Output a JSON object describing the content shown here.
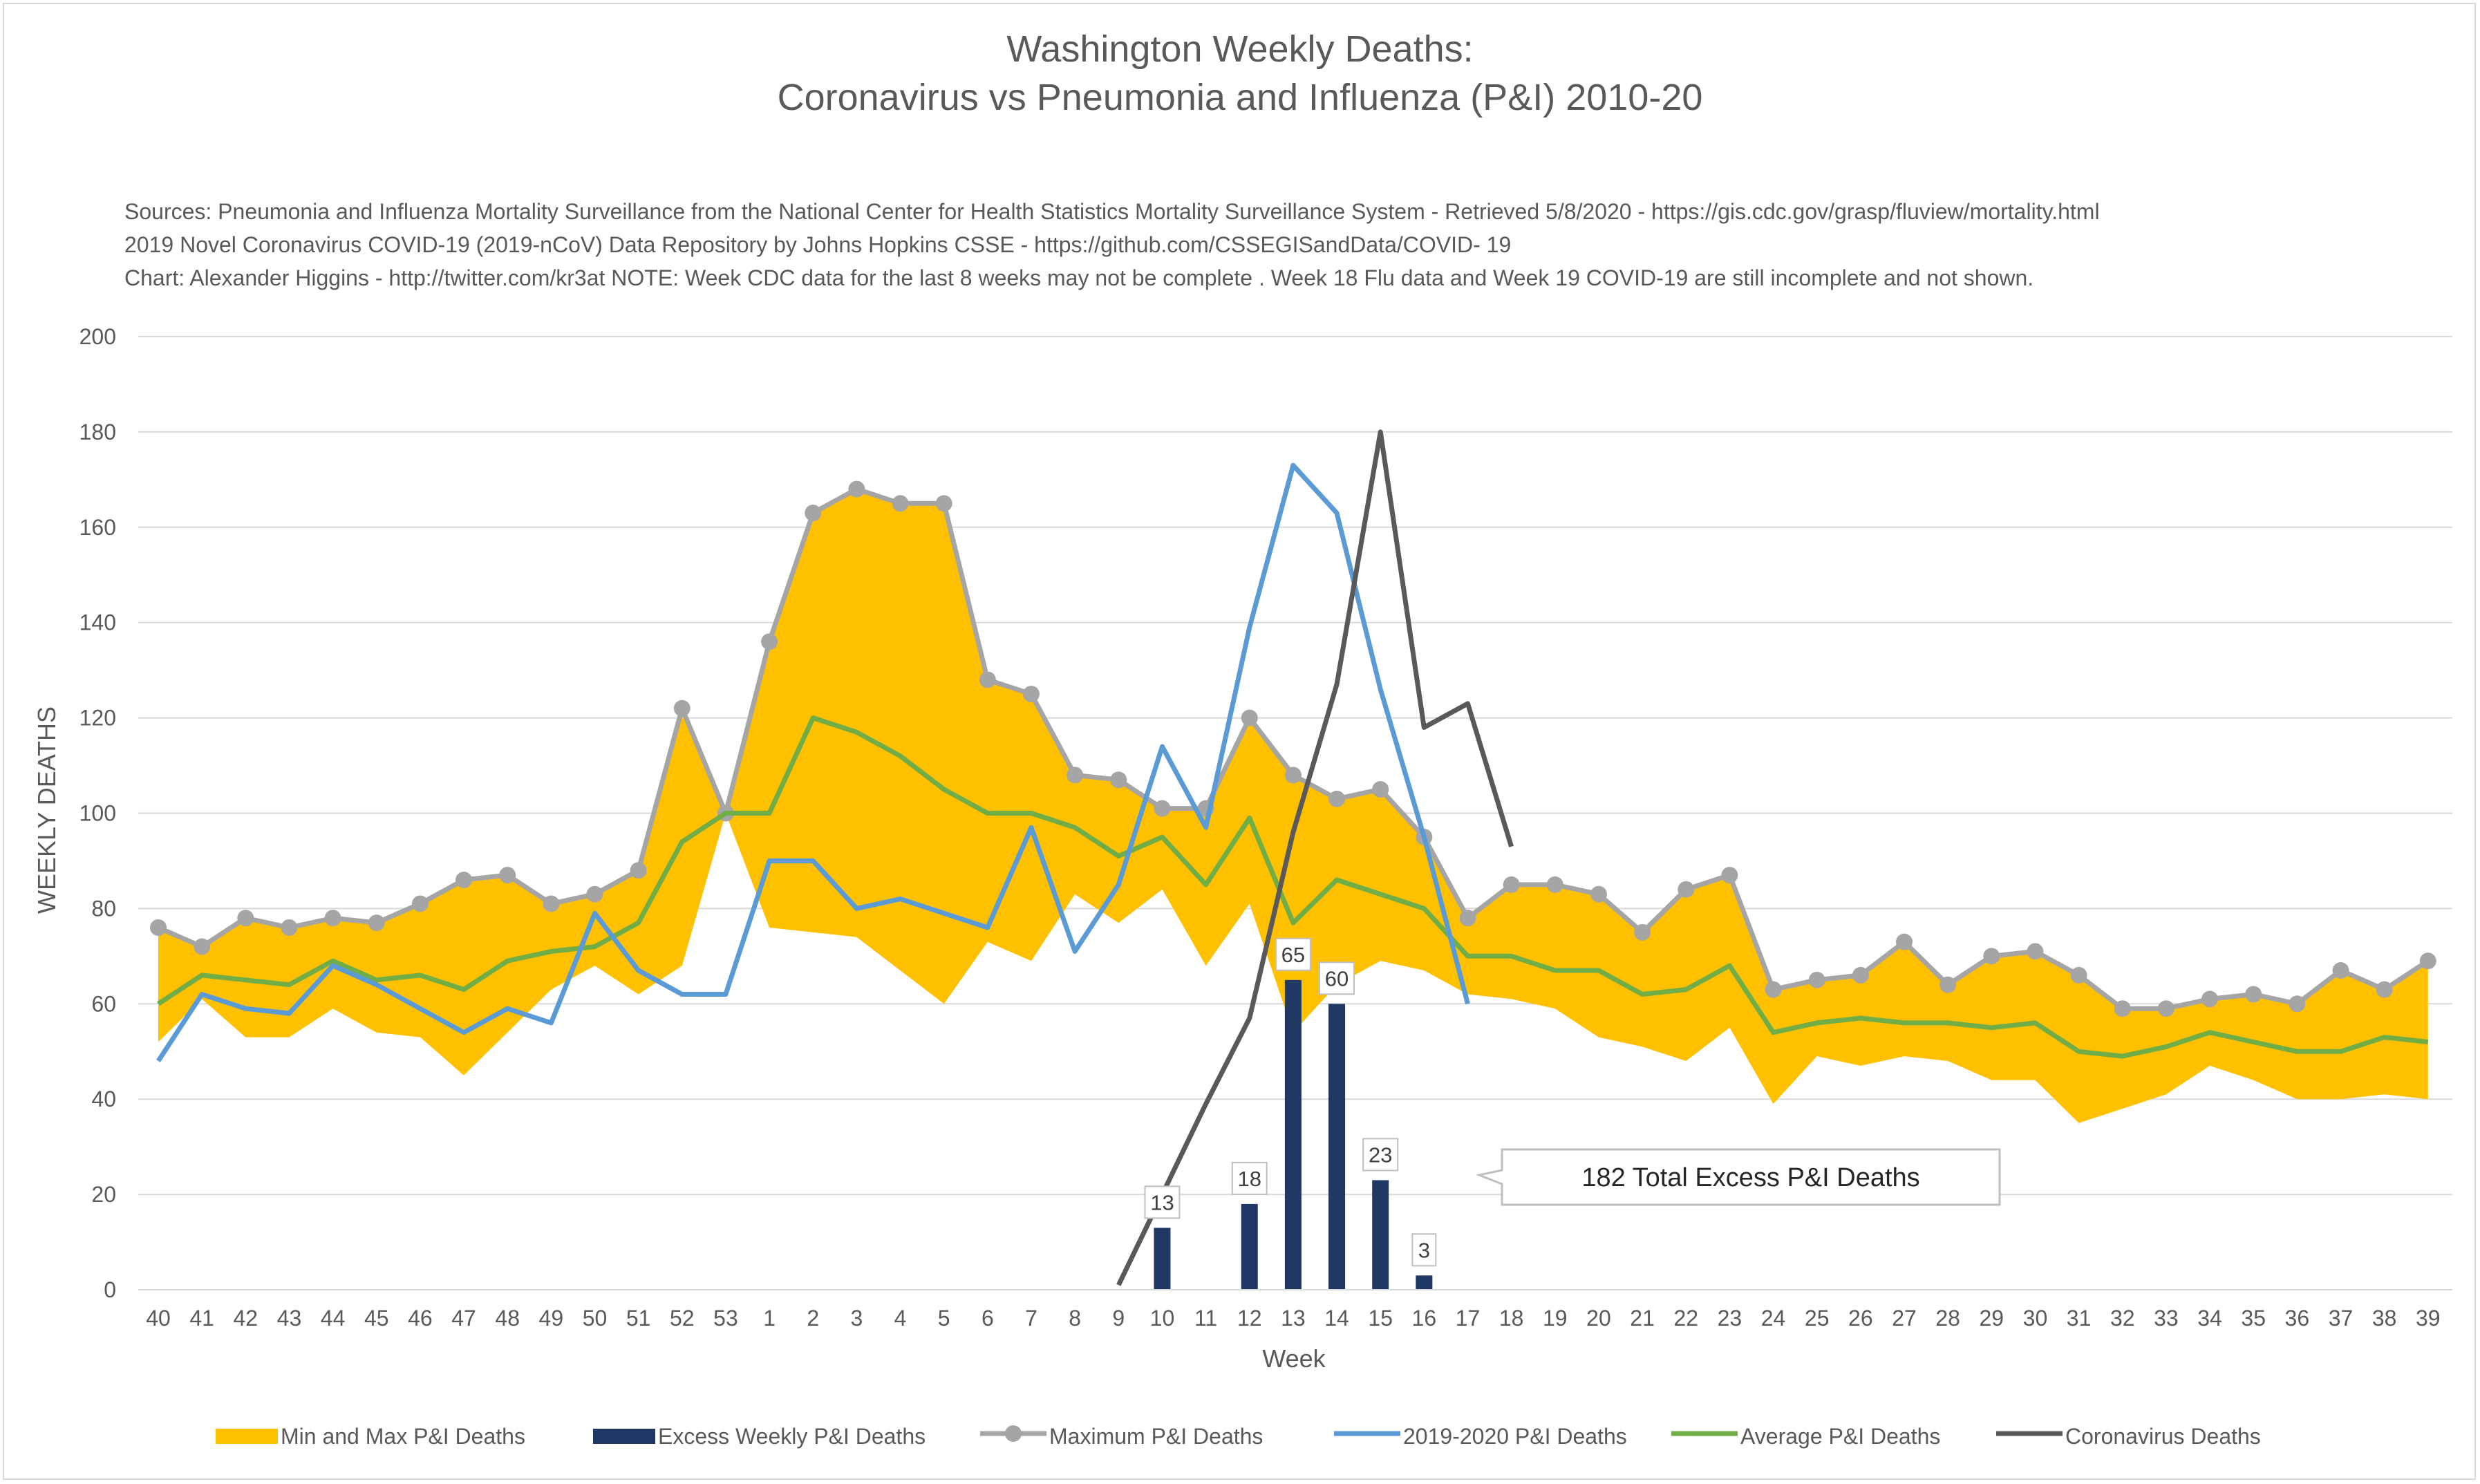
{
  "title_line1": "Washington Weekly Deaths:",
  "title_line2": "Coronavirus vs Pneumonia and Influenza (P&I) 2010-20",
  "sources": [
    "Sources: Pneumonia and Influenza Mortality Surveillance from the National Center for Health Statistics Mortality Surveillance System - Retrieved 5/8/2020 - https://gis.cdc.gov/grasp/fluview/mortality.html",
    "2019 Novel Coronavirus COVID-19 (2019-nCoV) Data Repository by Johns Hopkins CSSE - https://github.com/CSSEGISandData/COVID- 19",
    "Chart: Alexander Higgins - http://twitter.com/kr3at   NOTE: Week CDC data for the last 8 weeks may not be complete . Week 18 Flu data and Week 19 COVID-19 are still incomplete and not shown."
  ],
  "callout_text": "182 Total Excess P&I Deaths",
  "colors": {
    "band": "#FFC000",
    "excess": "#203864",
    "maximum": "#A5A5A5",
    "current": "#5B9BD5",
    "average": "#70AD47",
    "coronavirus": "#595959",
    "grid": "#d9d9d9"
  },
  "chart_data": {
    "type": "line",
    "xlabel": "Week",
    "ylabel": "WEEKLY DEATHS",
    "ylim": [
      0,
      200
    ],
    "yticks": [
      0,
      20,
      40,
      60,
      80,
      100,
      120,
      140,
      160,
      180,
      200
    ],
    "grid": true,
    "legend_position": "bottom",
    "categories": [
      "40",
      "41",
      "42",
      "43",
      "44",
      "45",
      "46",
      "47",
      "48",
      "49",
      "50",
      "51",
      "52",
      "53",
      "1",
      "2",
      "3",
      "4",
      "5",
      "6",
      "7",
      "8",
      "9",
      "10",
      "11",
      "12",
      "13",
      "14",
      "15",
      "16",
      "17",
      "18",
      "19",
      "20",
      "21",
      "22",
      "23",
      "24",
      "25",
      "26",
      "27",
      "28",
      "29",
      "30",
      "31",
      "32",
      "33",
      "34",
      "35",
      "36",
      "37",
      "38",
      "39"
    ],
    "band_min": [
      52,
      61,
      53,
      53,
      59,
      54,
      53,
      45,
      54,
      63,
      68,
      62,
      68,
      100,
      76,
      75,
      74,
      67,
      60,
      73,
      69,
      83,
      77,
      84,
      68,
      81,
      54,
      64,
      69,
      67,
      62,
      61,
      59,
      53,
      51,
      48,
      55,
      39,
      49,
      47,
      49,
      48,
      44,
      44,
      35,
      38,
      41,
      47,
      44,
      40,
      40,
      41,
      40
    ],
    "series": [
      {
        "name": "Min and Max P&I Deaths",
        "kind": "area"
      },
      {
        "name": "Excess Weekly P&I Deaths",
        "kind": "bar",
        "values": [
          null,
          null,
          null,
          null,
          null,
          null,
          null,
          null,
          null,
          null,
          null,
          null,
          null,
          null,
          null,
          null,
          null,
          null,
          null,
          null,
          null,
          null,
          null,
          13,
          null,
          18,
          65,
          60,
          23,
          3,
          null,
          null,
          null,
          null,
          null,
          null,
          null,
          null,
          null,
          null,
          null,
          null,
          null,
          null,
          null,
          null,
          null,
          null,
          null,
          null,
          null,
          null,
          null
        ],
        "labels": [
          "13",
          "18",
          "65",
          "60",
          "23",
          "3"
        ]
      },
      {
        "name": "Maximum P&I Deaths",
        "kind": "line-markers",
        "values": [
          76,
          72,
          78,
          76,
          78,
          77,
          81,
          86,
          87,
          81,
          83,
          88,
          122,
          100,
          136,
          163,
          168,
          165,
          165,
          128,
          125,
          108,
          107,
          101,
          101,
          120,
          108,
          103,
          105,
          95,
          78,
          85,
          85,
          83,
          75,
          84,
          87,
          63,
          65,
          66,
          73,
          64,
          70,
          71,
          66,
          59,
          59,
          61,
          62,
          60,
          67,
          63,
          69
        ]
      },
      {
        "name": "2019-2020 P&I Deaths",
        "kind": "line",
        "values": [
          48,
          62,
          59,
          58,
          68,
          64,
          59,
          54,
          59,
          56,
          79,
          67,
          62,
          62,
          90,
          90,
          80,
          82,
          79,
          76,
          97,
          71,
          85,
          114,
          97,
          139,
          173,
          163,
          126,
          95,
          60,
          null,
          null,
          null,
          null,
          null,
          null,
          null,
          null,
          null,
          null,
          null,
          null,
          null,
          null,
          null,
          null,
          null,
          null,
          null,
          null,
          null,
          null
        ]
      },
      {
        "name": "Average P&I Deaths",
        "kind": "line",
        "values": [
          60,
          66,
          65,
          64,
          69,
          65,
          66,
          63,
          69,
          71,
          72,
          77,
          94,
          100,
          100,
          120,
          117,
          112,
          105,
          100,
          100,
          97,
          91,
          95,
          85,
          99,
          77,
          86,
          83,
          80,
          70,
          70,
          67,
          67,
          62,
          63,
          68,
          54,
          56,
          57,
          56,
          56,
          55,
          56,
          50,
          49,
          51,
          54,
          52,
          50,
          50,
          53,
          52
        ]
      },
      {
        "name": "Coronavirus Deaths",
        "kind": "line",
        "values": [
          null,
          null,
          null,
          null,
          null,
          null,
          null,
          null,
          null,
          null,
          null,
          null,
          null,
          null,
          null,
          null,
          null,
          null,
          null,
          null,
          null,
          null,
          1,
          20,
          39,
          57,
          96,
          127,
          180,
          118,
          123,
          93,
          null,
          null,
          null,
          null,
          null,
          null,
          null,
          null,
          null,
          null,
          null,
          null,
          null,
          null,
          null,
          null,
          null,
          null,
          null,
          null,
          null
        ]
      }
    ]
  }
}
